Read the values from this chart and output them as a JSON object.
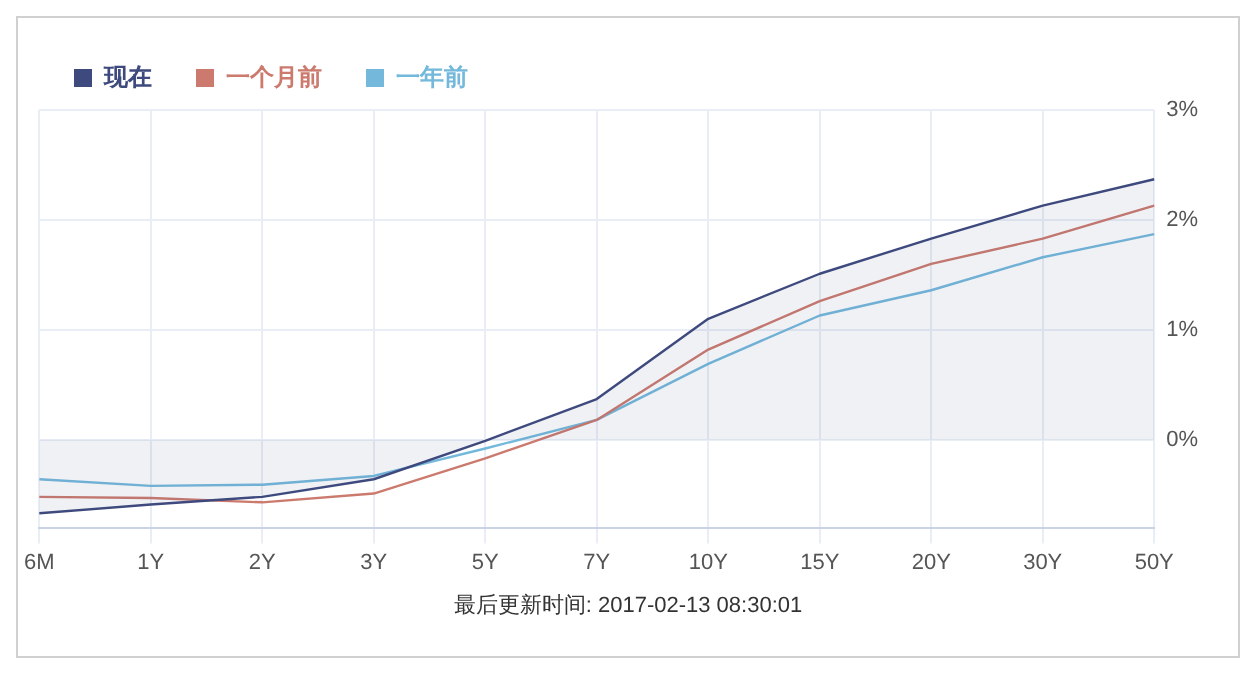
{
  "chart_data": {
    "type": "line",
    "categories": [
      "6M",
      "1Y",
      "2Y",
      "3Y",
      "5Y",
      "7Y",
      "10Y",
      "15Y",
      "20Y",
      "30Y",
      "50Y"
    ],
    "series": [
      {
        "name": "现在",
        "type": "area",
        "color": "#3e4a7e",
        "values": [
          -0.67,
          -0.59,
          -0.52,
          -0.36,
          -0.01,
          0.37,
          1.1,
          1.51,
          1.83,
          2.13,
          2.37
        ]
      },
      {
        "name": "一个月前",
        "color": "#cc7a6e",
        "values": [
          -0.52,
          -0.53,
          -0.57,
          -0.49,
          -0.17,
          0.18,
          0.82,
          1.26,
          1.6,
          1.83,
          2.13
        ]
      },
      {
        "name": "一年前",
        "color": "#74b9dc",
        "values": [
          -0.36,
          -0.42,
          -0.41,
          -0.33,
          -0.08,
          0.18,
          0.69,
          1.13,
          1.36,
          1.66,
          1.87
        ]
      }
    ],
    "ylim": [
      -0.8,
      3
    ],
    "yticks": [
      {
        "value": 0,
        "label": "0%"
      },
      {
        "value": 1,
        "label": "1%"
      },
      {
        "value": 2,
        "label": "2%"
      },
      {
        "value": 3,
        "label": "3%"
      }
    ],
    "grid": true,
    "legend": "top left",
    "marker": "none",
    "line_style": "solid",
    "annotations": [
      "最后更新时间: 2017-02-13 08:30:01"
    ]
  }
}
